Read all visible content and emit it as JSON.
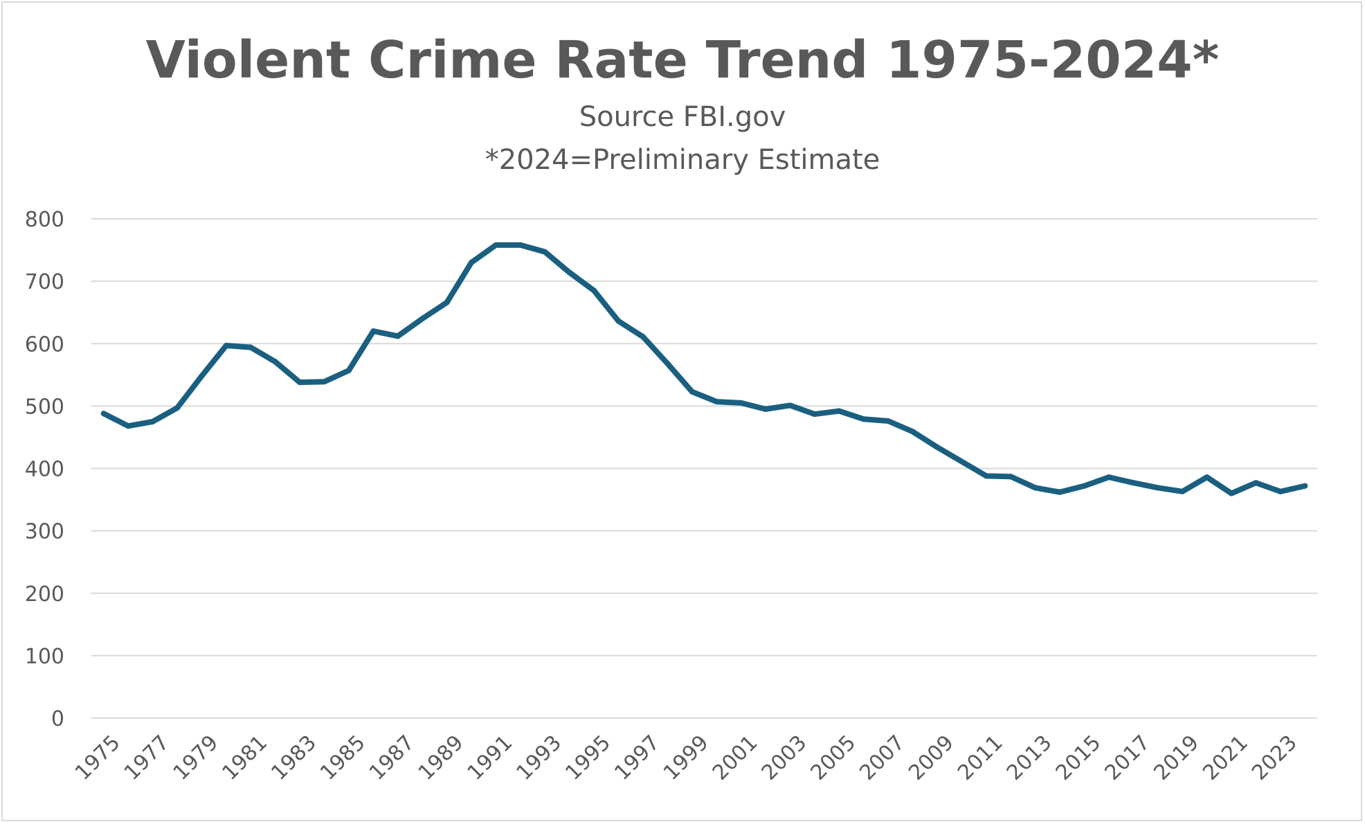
{
  "chart_data": {
    "type": "line",
    "title": "Violent Crime Rate Trend 1975-2024*",
    "subtitle_lines": [
      "Source FBI.gov",
      "*2024=Preliminary Estimate"
    ],
    "xlabel": "",
    "ylabel": "",
    "ylim": [
      0,
      800
    ],
    "y_ticks": [
      0,
      100,
      200,
      300,
      400,
      500,
      600,
      700,
      800
    ],
    "x": [
      1975,
      1976,
      1977,
      1978,
      1979,
      1980,
      1981,
      1982,
      1983,
      1984,
      1985,
      1986,
      1987,
      1988,
      1989,
      1990,
      1991,
      1992,
      1993,
      1994,
      1995,
      1996,
      1997,
      1998,
      1999,
      2000,
      2001,
      2002,
      2003,
      2004,
      2005,
      2006,
      2007,
      2008,
      2009,
      2010,
      2011,
      2012,
      2013,
      2014,
      2015,
      2016,
      2017,
      2018,
      2019,
      2020,
      2021,
      2022,
      2023,
      2024
    ],
    "x_tick_labels": [
      "1975",
      "1977",
      "1979",
      "1981",
      "1983",
      "1985",
      "1987",
      "1989",
      "1991",
      "1993",
      "1995",
      "1997",
      "1999",
      "2001",
      "2003",
      "2005",
      "2007",
      "2009",
      "2011",
      "2013",
      "2015",
      "2017",
      "2019",
      "2021",
      "2023"
    ],
    "series": [
      {
        "color": "#1a5f80",
        "values": [
          488,
          468,
          475,
          497,
          548,
          597,
          594,
          571,
          538,
          539,
          557,
          620,
          612,
          640,
          666,
          730,
          758,
          758,
          747,
          714,
          685,
          636,
          611,
          568,
          523,
          507,
          505,
          495,
          501,
          487,
          492,
          479,
          476,
          459,
          434,
          411,
          388,
          387,
          369,
          362,
          372,
          386,
          377,
          369,
          363,
          386,
          360,
          377,
          363,
          372
        ]
      }
    ],
    "grid": true,
    "legend": "none"
  }
}
